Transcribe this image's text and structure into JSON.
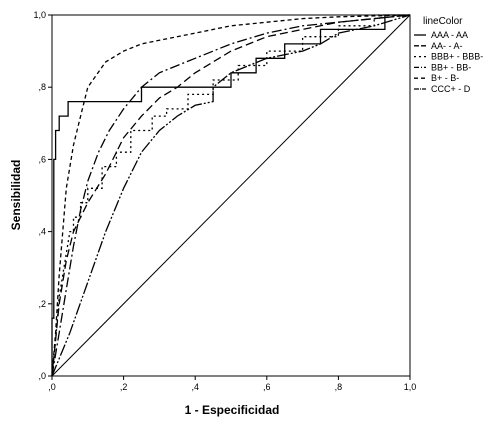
{
  "chart_data": {
    "type": "line",
    "title": "",
    "xlabel": "1 - Especificidad",
    "ylabel": "Sensibilidad",
    "xlim": [
      0,
      1
    ],
    "ylim": [
      0,
      1
    ],
    "x_ticks": [
      0,
      0.2,
      0.4,
      0.6,
      0.8,
      1.0
    ],
    "y_ticks": [
      0,
      0.2,
      0.4,
      0.6,
      0.8,
      1.0
    ],
    "x_tick_labels": [
      ",0",
      ",2",
      ",4",
      ",6",
      ",8",
      "1,0"
    ],
    "y_tick_labels": [
      ",0",
      ",2",
      ",4",
      ",6",
      ",8",
      "1,0"
    ],
    "grid": false,
    "legend": {
      "title": "lineColor",
      "position": "right"
    },
    "reference_line": {
      "x": [
        0,
        1
      ],
      "y": [
        0,
        1
      ]
    },
    "series": [
      {
        "name": "AAA - AA",
        "dash": "solid",
        "points": [
          [
            0,
            0
          ],
          [
            0,
            0.16
          ],
          [
            0.005,
            0.16
          ],
          [
            0.005,
            0.6
          ],
          [
            0.01,
            0.6
          ],
          [
            0.01,
            0.68
          ],
          [
            0.02,
            0.68
          ],
          [
            0.02,
            0.72
          ],
          [
            0.045,
            0.72
          ],
          [
            0.045,
            0.76
          ],
          [
            0.25,
            0.76
          ],
          [
            0.25,
            0.8
          ],
          [
            0.5,
            0.8
          ],
          [
            0.5,
            0.84
          ],
          [
            0.57,
            0.84
          ],
          [
            0.57,
            0.88
          ],
          [
            0.65,
            0.88
          ],
          [
            0.65,
            0.92
          ],
          [
            0.75,
            0.92
          ],
          [
            0.75,
            0.96
          ],
          [
            0.93,
            0.96
          ],
          [
            0.93,
            1
          ],
          [
            1,
            1
          ]
        ]
      },
      {
        "name": "AA- - A-",
        "dash": "8,4",
        "points": [
          [
            0,
            0
          ],
          [
            0.02,
            0.2
          ],
          [
            0.04,
            0.32
          ],
          [
            0.06,
            0.4
          ],
          [
            0.08,
            0.44
          ],
          [
            0.1,
            0.48
          ],
          [
            0.15,
            0.56
          ],
          [
            0.2,
            0.66
          ],
          [
            0.25,
            0.72
          ],
          [
            0.3,
            0.77
          ],
          [
            0.35,
            0.8
          ],
          [
            0.4,
            0.84
          ],
          [
            0.5,
            0.9
          ],
          [
            0.6,
            0.94
          ],
          [
            0.7,
            0.96
          ],
          [
            0.8,
            0.98
          ],
          [
            0.9,
            0.99
          ],
          [
            1,
            1
          ]
        ]
      },
      {
        "name": "BBB+ - BBB-",
        "dash": "2,3",
        "points": [
          [
            0,
            0
          ],
          [
            0.01,
            0.1
          ],
          [
            0.02,
            0.22
          ],
          [
            0.04,
            0.34
          ],
          [
            0.05,
            0.4
          ],
          [
            0.06,
            0.4
          ],
          [
            0.06,
            0.44
          ],
          [
            0.08,
            0.44
          ],
          [
            0.08,
            0.48
          ],
          [
            0.1,
            0.48
          ],
          [
            0.1,
            0.52
          ],
          [
            0.14,
            0.52
          ],
          [
            0.14,
            0.58
          ],
          [
            0.18,
            0.58
          ],
          [
            0.18,
            0.62
          ],
          [
            0.22,
            0.62
          ],
          [
            0.22,
            0.68
          ],
          [
            0.28,
            0.68
          ],
          [
            0.28,
            0.72
          ],
          [
            0.32,
            0.72
          ],
          [
            0.32,
            0.74
          ],
          [
            0.38,
            0.74
          ],
          [
            0.38,
            0.78
          ],
          [
            0.45,
            0.78
          ],
          [
            0.45,
            0.82
          ],
          [
            0.52,
            0.82
          ],
          [
            0.52,
            0.86
          ],
          [
            0.6,
            0.86
          ],
          [
            0.6,
            0.9
          ],
          [
            0.7,
            0.9
          ],
          [
            0.7,
            0.94
          ],
          [
            0.8,
            0.94
          ],
          [
            0.8,
            0.97
          ],
          [
            0.9,
            0.97
          ],
          [
            0.9,
            1
          ],
          [
            1,
            1
          ]
        ]
      },
      {
        "name": "BB+ - BB-",
        "dash": "10,3,2,3",
        "points": [
          [
            0,
            0
          ],
          [
            0.02,
            0.12
          ],
          [
            0.04,
            0.24
          ],
          [
            0.06,
            0.36
          ],
          [
            0.08,
            0.46
          ],
          [
            0.1,
            0.54
          ],
          [
            0.13,
            0.62
          ],
          [
            0.16,
            0.68
          ],
          [
            0.2,
            0.74
          ],
          [
            0.25,
            0.8
          ],
          [
            0.3,
            0.84
          ],
          [
            0.4,
            0.88
          ],
          [
            0.5,
            0.92
          ],
          [
            0.6,
            0.95
          ],
          [
            0.7,
            0.97
          ],
          [
            0.8,
            0.98
          ],
          [
            0.9,
            0.99
          ],
          [
            1,
            1
          ]
        ]
      },
      {
        "name": "B+ - B-",
        "dash": "4,3",
        "points": [
          [
            0,
            0
          ],
          [
            0.01,
            0.12
          ],
          [
            0.02,
            0.28
          ],
          [
            0.04,
            0.52
          ],
          [
            0.06,
            0.64
          ],
          [
            0.08,
            0.72
          ],
          [
            0.1,
            0.8
          ],
          [
            0.15,
            0.87
          ],
          [
            0.2,
            0.9
          ],
          [
            0.25,
            0.92
          ],
          [
            0.3,
            0.93
          ],
          [
            0.4,
            0.95
          ],
          [
            0.5,
            0.97
          ],
          [
            0.6,
            0.98
          ],
          [
            0.7,
            0.99
          ],
          [
            0.8,
            0.995
          ],
          [
            1,
            1
          ]
        ]
      },
      {
        "name": "CCC+ - D",
        "dash": "12,2,2,2,2,2",
        "points": [
          [
            0,
            0
          ],
          [
            0.05,
            0.12
          ],
          [
            0.1,
            0.26
          ],
          [
            0.15,
            0.4
          ],
          [
            0.2,
            0.52
          ],
          [
            0.25,
            0.62
          ],
          [
            0.3,
            0.68
          ],
          [
            0.35,
            0.72
          ],
          [
            0.4,
            0.75
          ],
          [
            0.45,
            0.76
          ],
          [
            0.45,
            0.8
          ],
          [
            0.5,
            0.84
          ],
          [
            0.55,
            0.86
          ],
          [
            0.6,
            0.88
          ],
          [
            0.7,
            0.9
          ],
          [
            0.75,
            0.92
          ],
          [
            0.8,
            0.95
          ],
          [
            0.9,
            0.97
          ],
          [
            1,
            1
          ]
        ]
      }
    ]
  }
}
